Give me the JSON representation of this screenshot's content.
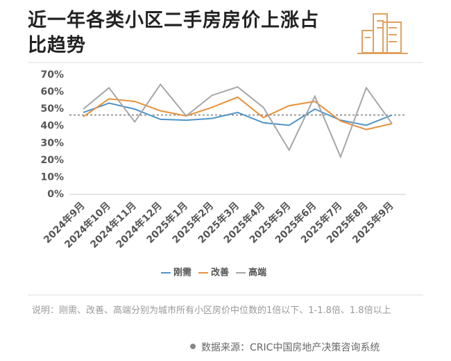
{
  "chart_data": {
    "type": "line",
    "title": "近一年各类小区二手房房价上涨占比趋势",
    "categories": [
      "2024年9月",
      "2024年10月",
      "2024年11月",
      "2024年12月",
      "2025年1月",
      "2025年2月",
      "2025年3月",
      "2025年4月",
      "2025年5月",
      "2025年6月",
      "2025年7月",
      "2025年8月",
      "2025年9月"
    ],
    "series": [
      {
        "name": "刚需",
        "color": "#4f93c7",
        "values": [
          48,
          53.5,
          50,
          44,
          43.5,
          44.5,
          48,
          42,
          40.5,
          50,
          43.5,
          40.5,
          46.5
        ]
      },
      {
        "name": "改善",
        "color": "#e8913a",
        "values": [
          45.5,
          56,
          54.5,
          49,
          46,
          51,
          57,
          45,
          52,
          54.5,
          43,
          38,
          41.5
        ]
      },
      {
        "name": "高端",
        "color": "#a6a6a6",
        "values": [
          50,
          62.5,
          42.5,
          64.5,
          46,
          58,
          63,
          51,
          26,
          57.5,
          22,
          62.5,
          41.5
        ]
      }
    ],
    "reference_line": 46.5,
    "ylim": [
      0,
      70
    ],
    "yticks": [
      {
        "value": 0,
        "label": "0%"
      },
      {
        "value": 10,
        "label": "10%"
      },
      {
        "value": 20,
        "label": "20%"
      },
      {
        "value": 30,
        "label": "30%"
      },
      {
        "value": 40,
        "label": "40%"
      },
      {
        "value": 50,
        "label": "50%"
      },
      {
        "value": 60,
        "label": "60%"
      },
      {
        "value": 70,
        "label": "70%"
      }
    ],
    "legend": "bottom",
    "note": "说明：刚需、改善、高端分别为城市所有小区房价中位数的1倍以下、1-1.8倍、1.8倍以上",
    "source": "数据来源：CRIC中国房地产决策咨询系统"
  }
}
